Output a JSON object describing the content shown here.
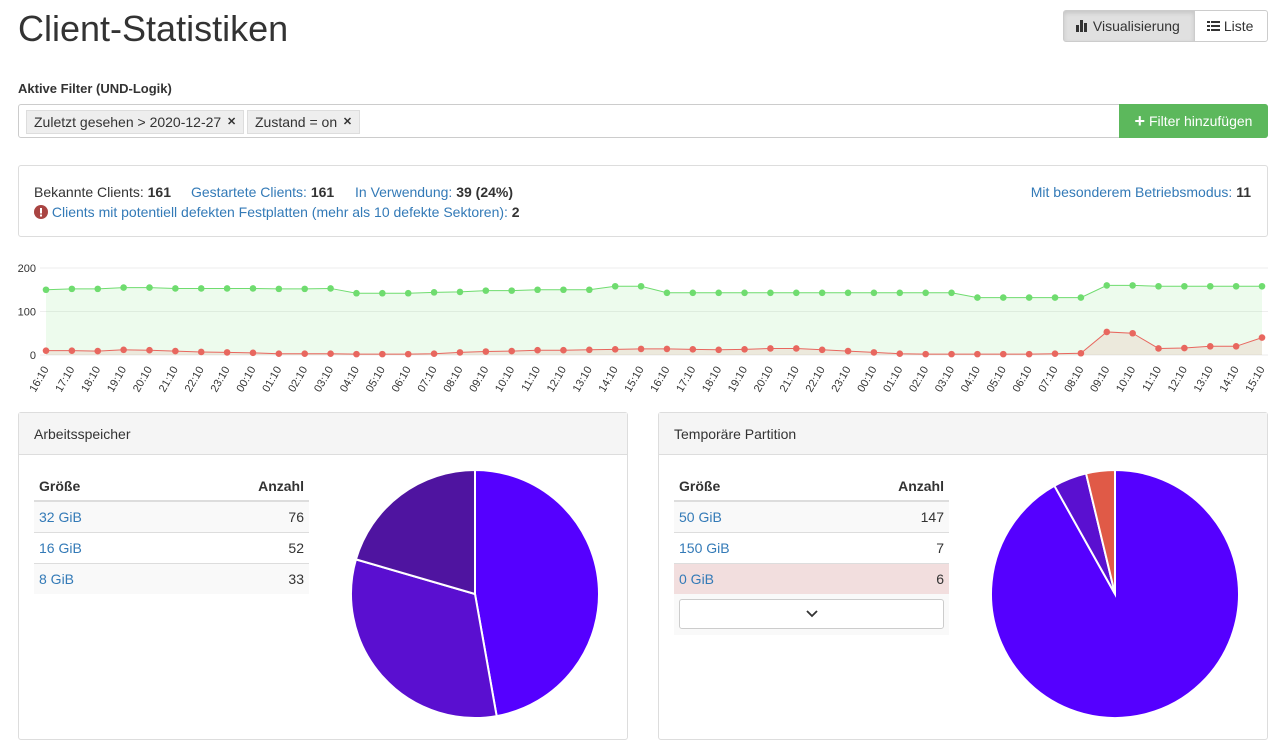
{
  "header": {
    "title": "Client-Statistiken",
    "view_buttons": [
      "Visualisierung",
      "Liste"
    ]
  },
  "filters": {
    "label": "Aktive Filter (UND-Logik)",
    "active": [
      "Zuletzt gesehen > 2020-12-27",
      "Zustand = on"
    ],
    "add_button": "Filter hinzufügen"
  },
  "summary": {
    "known_label": "Bekannte Clients:",
    "known": 161,
    "started_label": "Gestartete Clients:",
    "started": 161,
    "in_use_label": "In Verwendung:",
    "in_use": 39,
    "in_use_percent": "(24%)",
    "special_label": "Mit besonderem Betriebsmodus:",
    "special": 11,
    "defect_label": "Clients mit potentiell defekten Festplatten (mehr als 10 defekte Sektoren):",
    "defect": 2
  },
  "chart_data": {
    "type": "line",
    "x": [
      "16:10",
      "17:10",
      "18:10",
      "19:10",
      "20:10",
      "21:10",
      "22:10",
      "23:10",
      "00:10",
      "01:10",
      "02:10",
      "03:10",
      "04:10",
      "05:10",
      "06:10",
      "07:10",
      "08:10",
      "09:10",
      "10:10",
      "11:10",
      "12:10",
      "13:10",
      "14:10",
      "15:10",
      "16:10",
      "17:10",
      "18:10",
      "19:10",
      "20:10",
      "21:10",
      "22:10",
      "23:10",
      "00:10",
      "01:10",
      "02:10",
      "03:10",
      "04:10",
      "05:10",
      "06:10",
      "07:10",
      "08:10",
      "09:10",
      "10:10",
      "11:10",
      "12:10",
      "13:10",
      "14:10",
      "15:10"
    ],
    "series": [
      {
        "color": "#6fdc6f",
        "values": [
          150,
          152,
          152,
          155,
          155,
          153,
          153,
          153,
          153,
          152,
          152,
          153,
          142,
          142,
          142,
          144,
          145,
          148,
          148,
          150,
          150,
          150,
          158,
          158,
          143,
          143,
          143,
          143,
          143,
          143,
          143,
          143,
          143,
          143,
          143,
          143,
          132,
          132,
          132,
          132,
          132,
          160,
          160,
          158,
          158,
          158,
          158,
          158
        ]
      },
      {
        "color": "#e8675f",
        "values": [
          10,
          10,
          9,
          12,
          11,
          9,
          7,
          6,
          5,
          3,
          3,
          3,
          2,
          2,
          2,
          3,
          6,
          8,
          9,
          11,
          11,
          12,
          13,
          14,
          14,
          13,
          12,
          13,
          15,
          15,
          12,
          9,
          6,
          3,
          2,
          2,
          2,
          2,
          2,
          3,
          4,
          53,
          50,
          15,
          16,
          20,
          20,
          40
        ]
      }
    ],
    "ylim": [
      0,
      200
    ],
    "yticks": [
      0,
      100,
      200
    ],
    "grid": true,
    "area": true
  },
  "panels": [
    {
      "title": "Arbeitsspeicher",
      "columns": [
        "Größe",
        "Anzahl"
      ],
      "rows": [
        [
          "32 GiB",
          76
        ],
        [
          "16 GiB",
          52
        ],
        [
          "8 GiB",
          33
        ]
      ],
      "colors": [
        "#5500ff",
        "#5a0fd0",
        "#4f14a0"
      ]
    },
    {
      "title": "Temporäre Partition",
      "columns": [
        "Größe",
        "Anzahl"
      ],
      "rows": [
        [
          "50 GiB",
          147
        ],
        [
          "150 GiB",
          7
        ],
        [
          "0 GiB",
          6
        ]
      ],
      "colors": [
        "#5500ff",
        "#5a10d0",
        "#e05a47"
      ]
    }
  ]
}
